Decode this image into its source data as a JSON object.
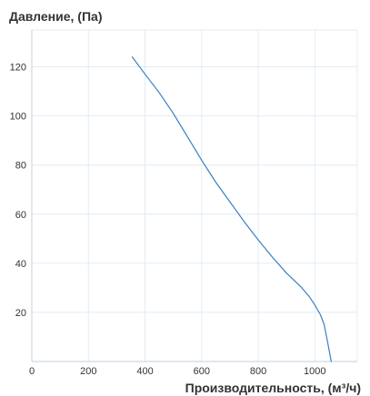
{
  "chart_data": {
    "type": "line",
    "title": "",
    "ylabel": "Давление, (Па)",
    "xlabel": "Производительность, (м³/ч)",
    "xlim": [
      0,
      1150
    ],
    "ylim": [
      0,
      135
    ],
    "x_ticks": [
      0,
      200,
      400,
      600,
      800,
      1000
    ],
    "y_ticks": [
      20,
      40,
      60,
      80,
      100,
      120
    ],
    "grid": true,
    "legend": "none",
    "series": [
      {
        "color": "#3a7fc1",
        "points": [
          [
            355,
            124
          ],
          [
            400,
            117
          ],
          [
            450,
            109.5
          ],
          [
            500,
            101
          ],
          [
            550,
            91.5
          ],
          [
            600,
            82
          ],
          [
            650,
            73
          ],
          [
            700,
            65
          ],
          [
            750,
            57
          ],
          [
            800,
            49.5
          ],
          [
            850,
            42.5
          ],
          [
            900,
            36
          ],
          [
            950,
            30.5
          ],
          [
            980,
            26.5
          ],
          [
            1000,
            23
          ],
          [
            1020,
            19
          ],
          [
            1033,
            15
          ],
          [
            1045,
            8
          ],
          [
            1058,
            0
          ]
        ]
      }
    ]
  },
  "colors": {
    "grid": "#e2ecf5",
    "axis": "#c0d0e0",
    "line": "#3a7fc1",
    "text": "#333333"
  }
}
